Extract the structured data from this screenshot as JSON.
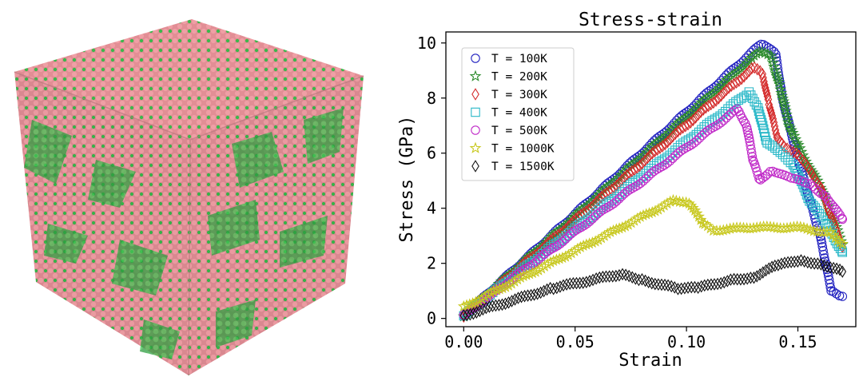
{
  "left_panel": {
    "description_kind": "atomistic cube render",
    "colors": {
      "atom_a": "#e79a9e",
      "atom_b": "#39b54a",
      "edge_dark": "#8a5a5c"
    }
  },
  "chart_data": {
    "type": "scatter",
    "title": "Stress-strain",
    "xlabel": "Strain",
    "ylabel": "Stress (GPa)",
    "xlim": [
      -0.008,
      0.176
    ],
    "ylim": [
      -0.3,
      10.4
    ],
    "xticks": [
      0.0,
      0.05,
      0.1,
      0.15
    ],
    "xtick_labels": [
      "0.00",
      "0.05",
      "0.10",
      "0.15"
    ],
    "yticks": [
      0,
      2,
      4,
      6,
      8,
      10
    ],
    "ytick_labels": [
      "0",
      "2",
      "4",
      "6",
      "8",
      "10"
    ],
    "legend_position": "top-left",
    "series": [
      {
        "name": "T = 100K",
        "marker": "circle",
        "color": "#1f1fbf",
        "keypoints": [
          [
            0.0,
            0.1
          ],
          [
            0.134,
            10.0
          ],
          [
            0.14,
            9.6
          ],
          [
            0.143,
            8.0
          ],
          [
            0.15,
            5.8
          ],
          [
            0.16,
            3.0
          ],
          [
            0.165,
            1.0
          ],
          [
            0.17,
            0.8
          ]
        ]
      },
      {
        "name": "T = 200K",
        "marker": "star",
        "color": "#2a8a2a",
        "keypoints": [
          [
            0.0,
            0.1
          ],
          [
            0.133,
            9.7
          ],
          [
            0.138,
            9.5
          ],
          [
            0.142,
            8.4
          ],
          [
            0.146,
            7.0
          ],
          [
            0.15,
            6.3
          ],
          [
            0.153,
            5.8
          ],
          [
            0.16,
            4.8
          ],
          [
            0.17,
            2.7
          ]
        ]
      },
      {
        "name": "T = 300K",
        "marker": "diamond",
        "color": "#d42a2a",
        "keypoints": [
          [
            0.0,
            0.1
          ],
          [
            0.13,
            9.1
          ],
          [
            0.134,
            8.9
          ],
          [
            0.137,
            7.8
          ],
          [
            0.141,
            6.5
          ],
          [
            0.144,
            6.2
          ],
          [
            0.15,
            6.0
          ],
          [
            0.16,
            4.8
          ],
          [
            0.17,
            2.6
          ]
        ]
      },
      {
        "name": "T = 400K",
        "marker": "square",
        "color": "#2ab8c8",
        "keypoints": [
          [
            0.0,
            0.1
          ],
          [
            0.128,
            8.2
          ],
          [
            0.132,
            7.7
          ],
          [
            0.136,
            6.4
          ],
          [
            0.142,
            6.0
          ],
          [
            0.148,
            5.6
          ],
          [
            0.155,
            4.3
          ],
          [
            0.163,
            3.4
          ],
          [
            0.17,
            2.4
          ]
        ]
      },
      {
        "name": "T = 500K",
        "marker": "circle",
        "color": "#c02ac8",
        "keypoints": [
          [
            0.0,
            0.1
          ],
          [
            0.123,
            7.6
          ],
          [
            0.127,
            7.0
          ],
          [
            0.13,
            5.7
          ],
          [
            0.133,
            5.0
          ],
          [
            0.138,
            5.4
          ],
          [
            0.146,
            5.1
          ],
          [
            0.155,
            4.9
          ],
          [
            0.163,
            4.4
          ],
          [
            0.17,
            3.6
          ]
        ]
      },
      {
        "name": "T = 1000K",
        "marker": "star",
        "color": "#c8c81e",
        "keypoints": [
          [
            0.0,
            0.4
          ],
          [
            0.095,
            4.3
          ],
          [
            0.101,
            4.2
          ],
          [
            0.108,
            3.4
          ],
          [
            0.112,
            3.2
          ],
          [
            0.13,
            3.3
          ],
          [
            0.15,
            3.3
          ],
          [
            0.165,
            3.1
          ],
          [
            0.17,
            2.7
          ]
        ]
      },
      {
        "name": "T = 1500K",
        "marker": "diamond",
        "color": "#111111",
        "keypoints": [
          [
            0.0,
            0.1
          ],
          [
            0.04,
            1.1
          ],
          [
            0.07,
            1.6
          ],
          [
            0.08,
            1.4
          ],
          [
            0.095,
            1.1
          ],
          [
            0.105,
            1.1
          ],
          [
            0.12,
            1.4
          ],
          [
            0.13,
            1.5
          ],
          [
            0.14,
            1.9
          ],
          [
            0.15,
            2.1
          ],
          [
            0.16,
            2.0
          ],
          [
            0.17,
            1.7
          ]
        ]
      }
    ]
  }
}
